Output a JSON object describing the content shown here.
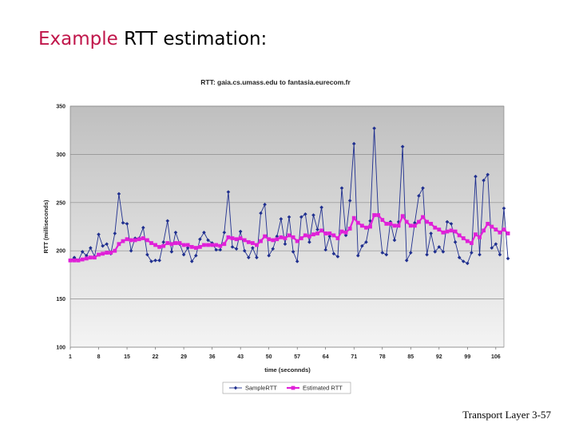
{
  "slide": {
    "title_prefix": "Example",
    "title_rest": "RTT estimation:",
    "footer": "Transport Layer 3-57"
  },
  "colors": {
    "sample": "#1f2f8f",
    "estimated": "#e020d8",
    "plot_bg_top": "#bfbfbf",
    "plot_bg_bottom": "#f4f4f4",
    "grid": "#8c8c8c"
  },
  "chart_data": {
    "type": "line",
    "title": "RTT: gaia.cs.umass.edu to fantasia.eurecom.fr",
    "xlabel": "time (seconnds)",
    "ylabel": "RTT (milliseconds)",
    "ylim": [
      100,
      350
    ],
    "yticks": [
      "100",
      "150",
      "200",
      "250",
      "300",
      "350"
    ],
    "xticks": [
      "1",
      "8",
      "15",
      "22",
      "29",
      "36",
      "43",
      "50",
      "57",
      "64",
      "71",
      "78",
      "85",
      "92",
      "99",
      "106"
    ],
    "xlim": [
      1,
      108
    ],
    "grid": "horizontal",
    "legend_position": "bottom",
    "series": [
      {
        "name": "SampleRTT",
        "marker": "diamond",
        "values": [
          190,
          193,
          190,
          199,
          195,
          203,
          194,
          217,
          205,
          207,
          197,
          218,
          259,
          229,
          228,
          200,
          213,
          213,
          224,
          196,
          189,
          190,
          190,
          209,
          231,
          199,
          219,
          207,
          196,
          203,
          189,
          195,
          212,
          219,
          211,
          208,
          201,
          201,
          219,
          261,
          204,
          202,
          220,
          200,
          193,
          203,
          193,
          239,
          248,
          195,
          202,
          215,
          233,
          207,
          235,
          199,
          189,
          235,
          238,
          209,
          237,
          222,
          245,
          201,
          215,
          197,
          194,
          265,
          216,
          252,
          311,
          195,
          205,
          209,
          231,
          327,
          237,
          198,
          196,
          230,
          211,
          230,
          308,
          190,
          198,
          229,
          257,
          265,
          196,
          218,
          199,
          204,
          199,
          230,
          228,
          209,
          193,
          189,
          187,
          198,
          277,
          196,
          273,
          279,
          203,
          207,
          196,
          244,
          192
        ]
      },
      {
        "name": "Estimated RTT",
        "marker": "square",
        "values": [
          190,
          190,
          190,
          191,
          192,
          193,
          193,
          196,
          197,
          198,
          198,
          200,
          207,
          210,
          212,
          211,
          211,
          212,
          213,
          211,
          208,
          206,
          204,
          205,
          208,
          207,
          208,
          208,
          206,
          206,
          204,
          203,
          204,
          206,
          206,
          206,
          206,
          205,
          207,
          214,
          213,
          212,
          213,
          211,
          209,
          208,
          206,
          210,
          215,
          212,
          211,
          212,
          214,
          213,
          216,
          214,
          210,
          213,
          216,
          215,
          217,
          218,
          221,
          218,
          218,
          216,
          213,
          220,
          219,
          223,
          234,
          229,
          226,
          224,
          225,
          237,
          237,
          232,
          228,
          228,
          226,
          226,
          236,
          230,
          226,
          226,
          230,
          235,
          230,
          228,
          224,
          222,
          219,
          220,
          221,
          220,
          216,
          213,
          210,
          208,
          217,
          214,
          221,
          228,
          225,
          222,
          219,
          222,
          218
        ]
      }
    ]
  }
}
